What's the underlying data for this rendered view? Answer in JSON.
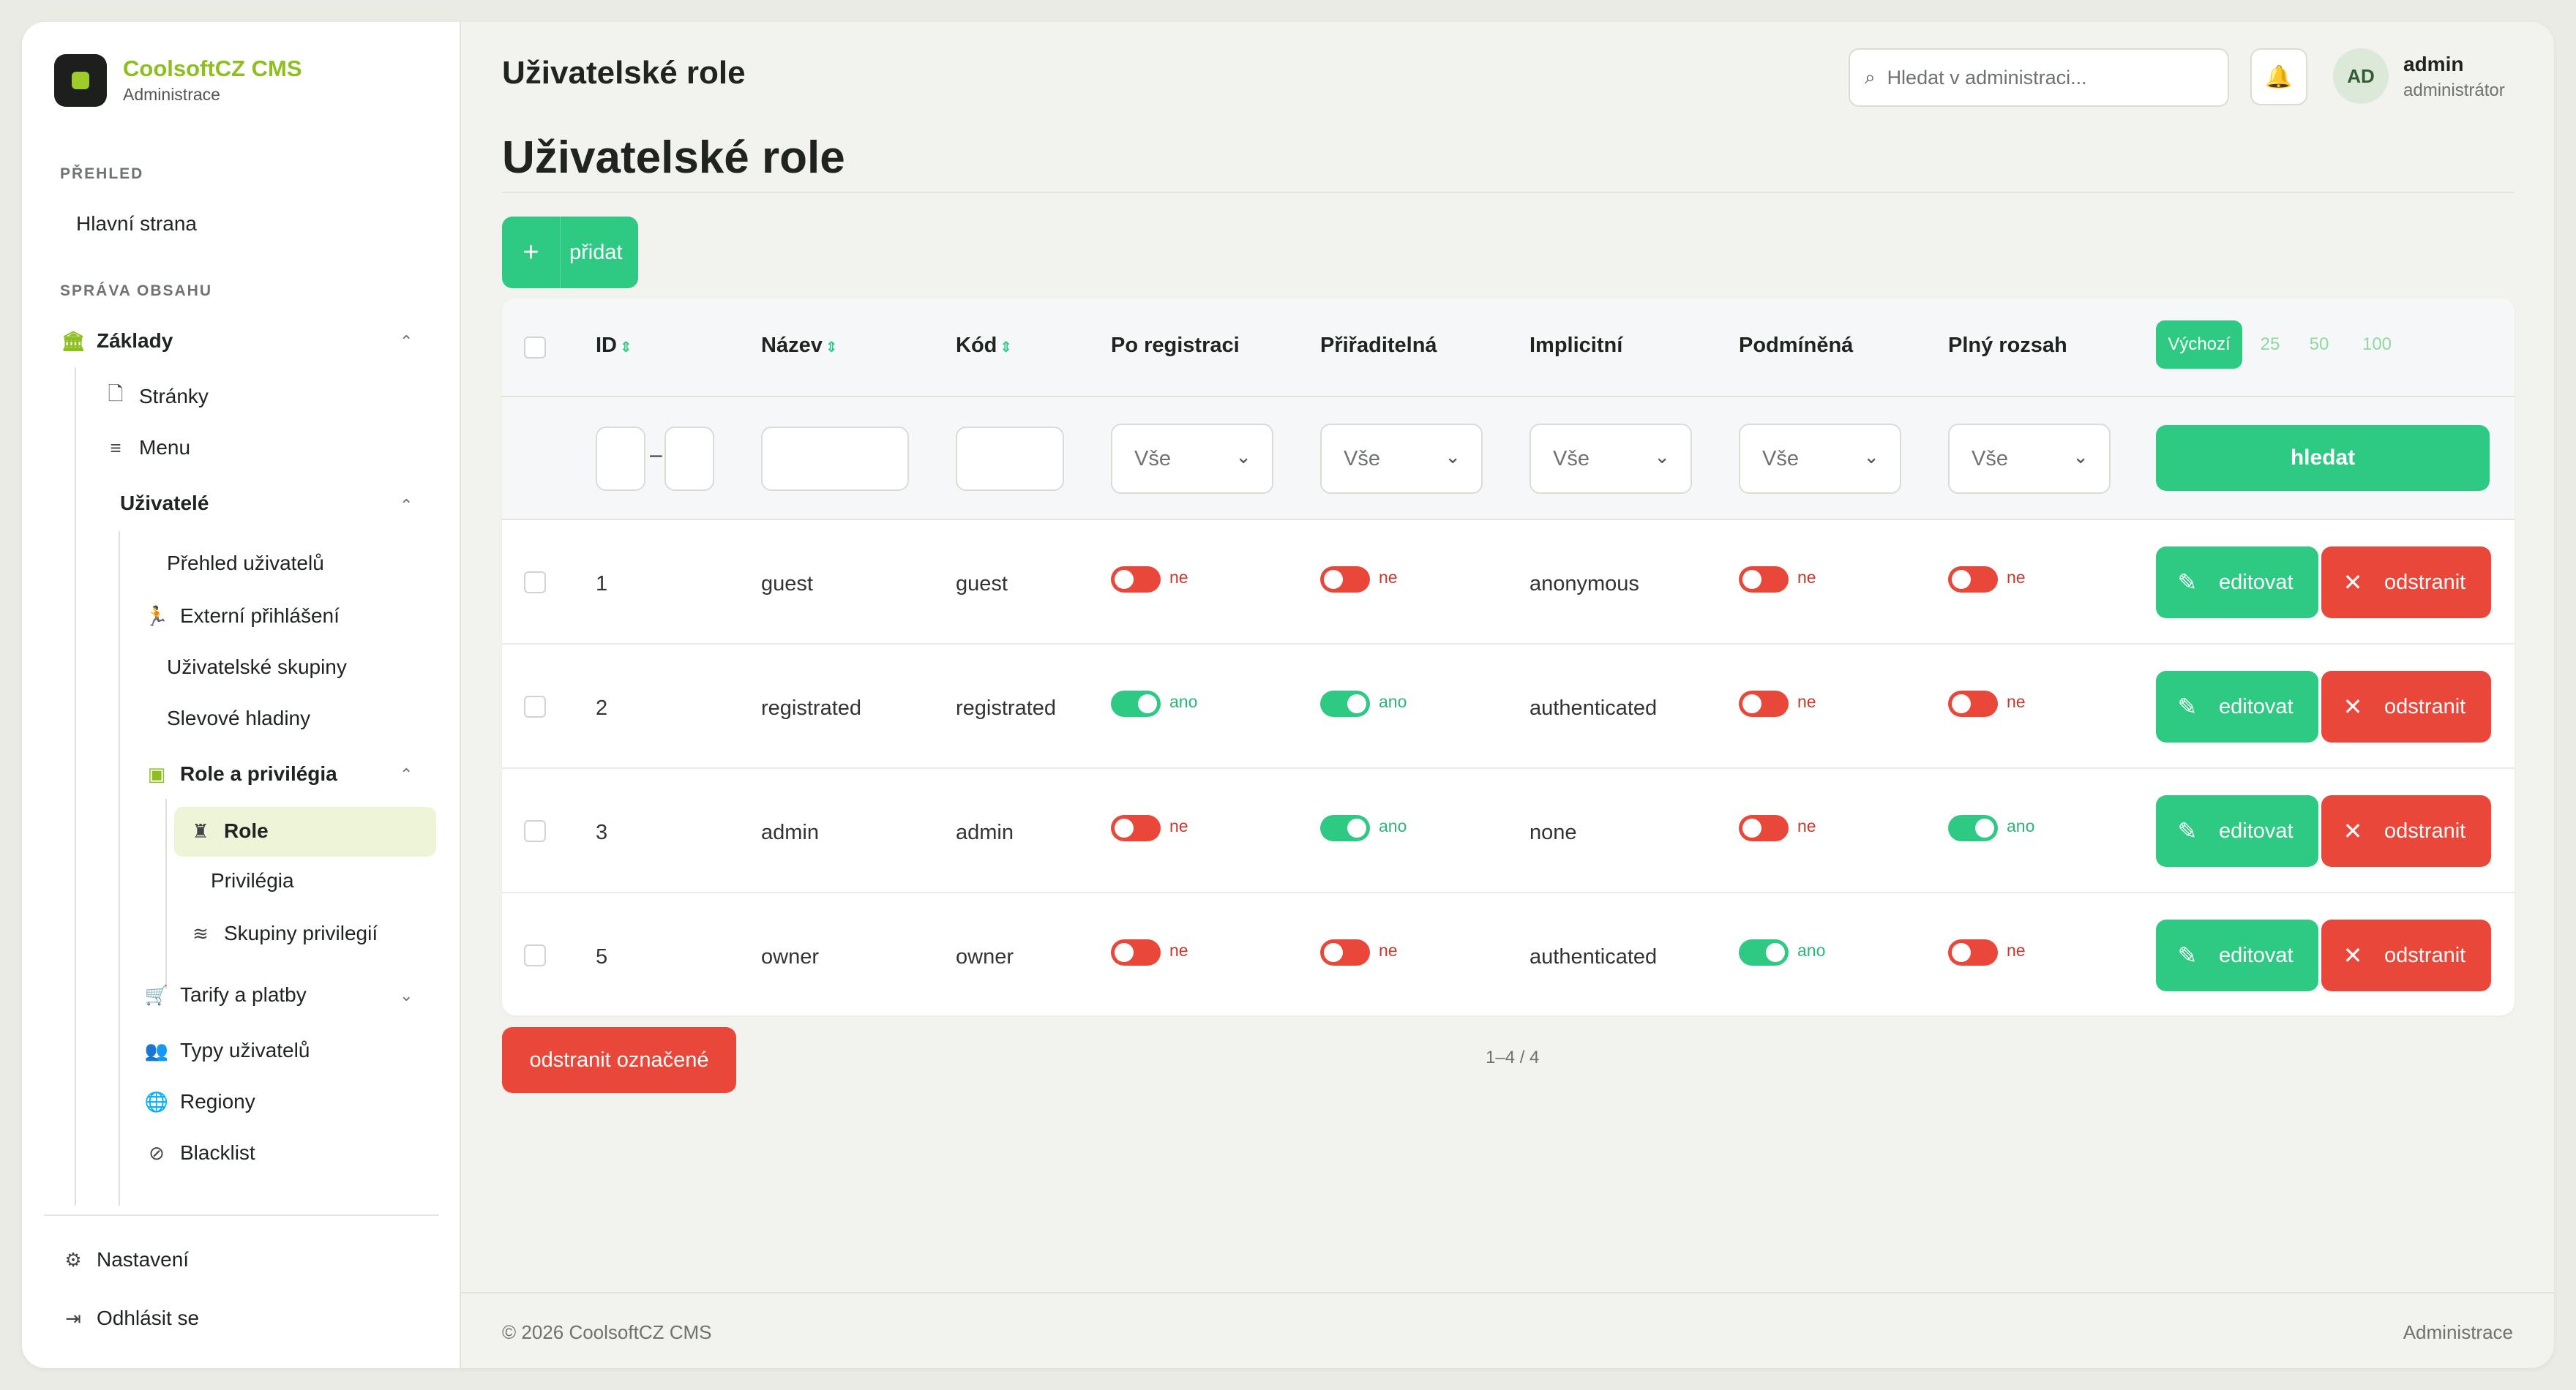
{
  "brand": {
    "name": "CoolsoftCZ CMS",
    "subtitle": "Administrace"
  },
  "sidebar": {
    "section_overview": "PŘEHLED",
    "home": "Hlavní strana",
    "section_content": "SPRÁVA OBSAHU",
    "basics": "Základy",
    "pages": "Stránky",
    "menu": "Menu",
    "users": "Uživatelé",
    "users_overview": "Přehled uživatelů",
    "external_login": "Externí přihlášení",
    "user_groups": "Uživatelské skupiny",
    "discount_levels": "Slevové hladiny",
    "roles_privileges": "Role a privilégia",
    "role": "Role",
    "privileges": "Privilégia",
    "privilege_groups": "Skupiny privilegií",
    "tariffs": "Tarify a platby",
    "user_types": "Typy uživatelů",
    "regions": "Regiony",
    "blacklist": "Blacklist",
    "settings": "Nastavení",
    "logout": "Odhlásit se"
  },
  "header": {
    "title": "Uživatelské role",
    "search_placeholder": "Hledat v administraci...",
    "user_initials": "AD",
    "user_name": "admin",
    "user_role": "administrátor"
  },
  "page": {
    "title": "Uživatelské role",
    "add_label": "přidat"
  },
  "table": {
    "columns": {
      "id": "ID",
      "name": "Název",
      "code": "Kód",
      "on_registration": "Po registraci",
      "assignable": "Přiřaditelná",
      "implicit": "Implicitní",
      "conditional": "Podmíněná",
      "full_scope": "Plný rozsah"
    },
    "per_page": {
      "default": "Výchozí",
      "o25": "25",
      "o50": "50",
      "o100": "100"
    },
    "filters": {
      "range_sep": "–",
      "on_registration": "Vše",
      "assignable": "Vše",
      "implicit": "Vše",
      "conditional": "Vše",
      "full_scope": "Vše",
      "search_label": "hledat"
    },
    "rows": [
      {
        "id": "1",
        "name": "guest",
        "code": "guest",
        "on_registration": false,
        "on_registration_label": "ne",
        "assignable": false,
        "assignable_label": "ne",
        "implicit": "anonymous",
        "conditional": false,
        "conditional_label": "ne",
        "full_scope": false,
        "full_scope_label": "ne"
      },
      {
        "id": "2",
        "name": "registrated",
        "code": "registrated",
        "on_registration": true,
        "on_registration_label": "ano",
        "assignable": true,
        "assignable_label": "ano",
        "implicit": "authenticated",
        "conditional": false,
        "conditional_label": "ne",
        "full_scope": false,
        "full_scope_label": "ne"
      },
      {
        "id": "3",
        "name": "admin",
        "code": "admin",
        "on_registration": false,
        "on_registration_label": "ne",
        "assignable": true,
        "assignable_label": "ano",
        "implicit": "none",
        "conditional": false,
        "conditional_label": "ne",
        "full_scope": true,
        "full_scope_label": "ano"
      },
      {
        "id": "5",
        "name": "owner",
        "code": "owner",
        "on_registration": false,
        "on_registration_label": "ne",
        "assignable": false,
        "assignable_label": "ne",
        "implicit": "authenticated",
        "conditional": true,
        "conditional_label": "ano",
        "full_scope": false,
        "full_scope_label": "ne"
      }
    ],
    "edit_label": "editovat",
    "delete_label": "odstranit"
  },
  "bulk_delete": "odstranit označené",
  "pager": "1–4 / 4",
  "footer": {
    "left": "© 2026 CoolsoftCZ CMS",
    "right": "Administrace"
  },
  "colors": {
    "accent": "#2ec983",
    "danger": "#e8473a",
    "brand": "#8cbf1f"
  }
}
